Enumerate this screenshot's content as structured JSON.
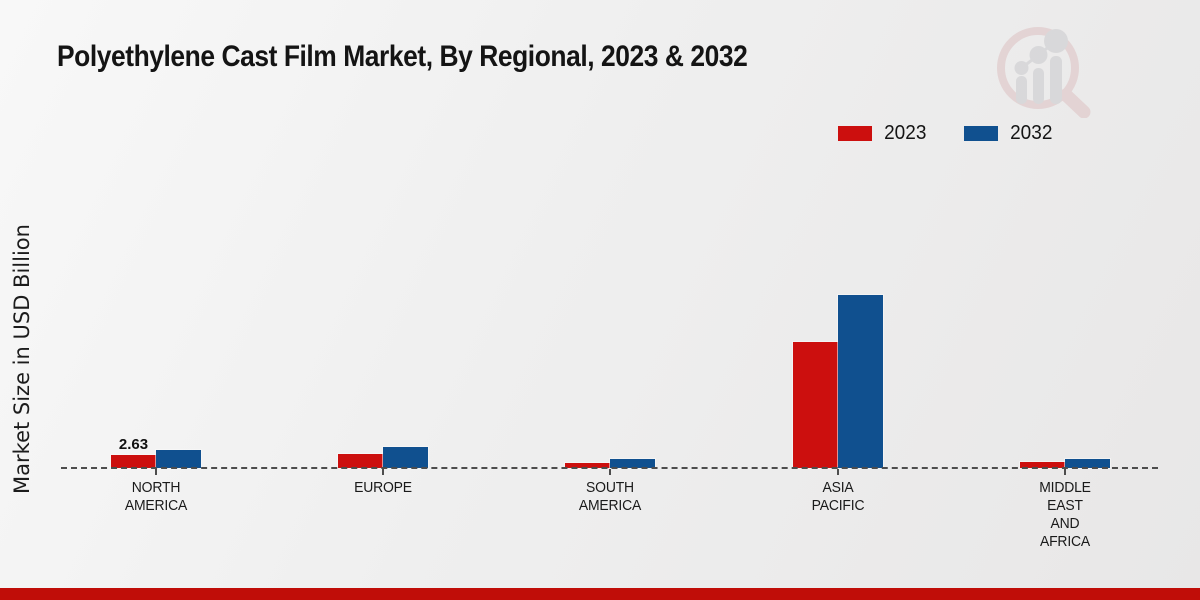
{
  "header": {
    "title": "Polyethylene Cast Film Market, By Regional, 2023 & 2032"
  },
  "chart_data": {
    "type": "bar",
    "title": "Polyethylene Cast Film Market, By Regional, 2023 & 2032",
    "ylabel": "Market Size in USD Billion",
    "xlabel": "",
    "unit": "USD Billion",
    "grid": false,
    "legend_position": "top-right",
    "ylim": [
      0,
      40
    ],
    "categories": [
      "NORTH AMERICA",
      "EUROPE",
      "SOUTH AMERICA",
      "ASIA PACIFIC",
      "MIDDLE EAST AND AFRICA"
    ],
    "category_label_lines": [
      [
        "NORTH",
        "AMERICA"
      ],
      [
        "EUROPE"
      ],
      [
        "SOUTH",
        "AMERICA"
      ],
      [
        "ASIA",
        "PACIFIC"
      ],
      [
        "MIDDLE",
        "EAST",
        "AND",
        "AFRICA"
      ]
    ],
    "series": [
      {
        "name": "2023",
        "color": "#cc0f0e",
        "values": [
          2.63,
          3.0,
          1.1,
          26.6,
          1.3
        ]
      },
      {
        "name": "2032",
        "color": "#10508f",
        "values": [
          3.8,
          4.4,
          1.9,
          36.5,
          1.95
        ]
      }
    ],
    "annotations": [
      {
        "text": "2.63",
        "series_index": 0,
        "category_index": 0
      }
    ]
  },
  "footer": {
    "banner_color": "#c00d08"
  }
}
